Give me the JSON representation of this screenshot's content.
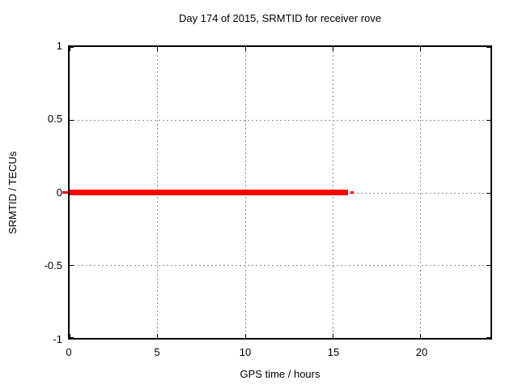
{
  "chart_data": {
    "type": "line",
    "title": "Day 174 of 2015, SRMTID for receiver rove",
    "xlabel": "GPS time / hours",
    "ylabel": "SRMTID / TECUs",
    "xlim": [
      0,
      24
    ],
    "ylim": [
      -1,
      1
    ],
    "x_ticks": [
      0,
      5,
      10,
      15,
      20
    ],
    "y_ticks": [
      1,
      0.5,
      0,
      -0.5,
      -1
    ],
    "x_tick_labels": [
      "0",
      "5",
      "10",
      "15",
      "20"
    ],
    "y_tick_labels": [
      "1",
      "0.5",
      "0",
      "-0.5",
      "-1"
    ],
    "grid": "dotted gray gridlines at each tick, mirror ticks inward on all four borders",
    "legend": "none",
    "series": [
      {
        "name": "SRMTID",
        "color": "#ff0000",
        "style": "thick solid horizontal line, ~7px wide stroke",
        "description": "Constant value 0 TECUs from 0 h to ~15.85 h GPS time; a short thin red dash follows at ~16.0-16.1 h, and a tiny red dash appears just outside the left border at y=0",
        "segments": [
          {
            "x_start": 0,
            "x_end": 15.85,
            "y": 0
          },
          {
            "x_start": 15.97,
            "x_end": 16.15,
            "y": 0
          }
        ]
      }
    ]
  },
  "colors": {
    "background": "#ffffff",
    "border": "#000000",
    "text": "#000000",
    "grid": "#8f8f8f",
    "series": "#ff0000"
  }
}
